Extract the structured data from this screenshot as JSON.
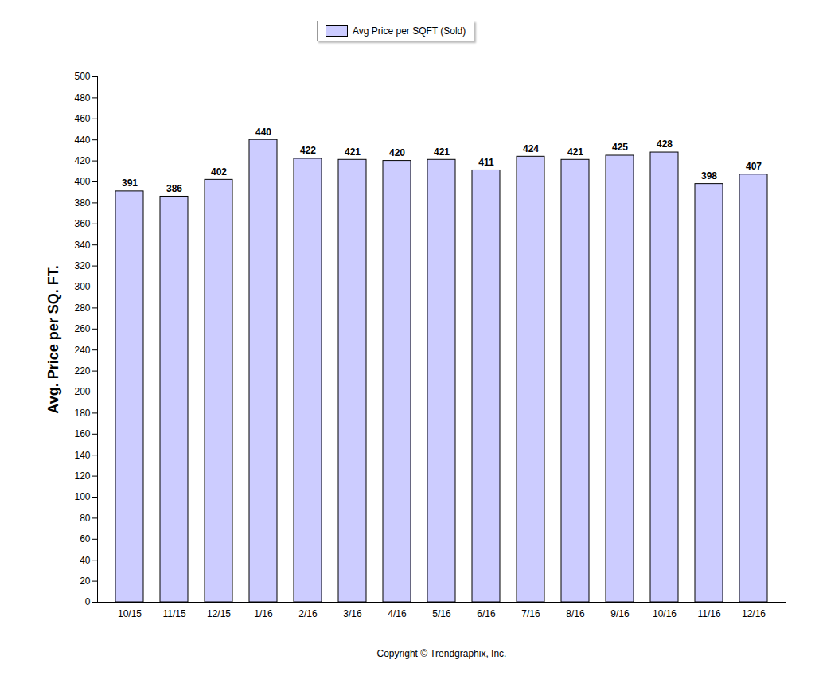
{
  "chart_data": {
    "type": "bar",
    "y_label": "Avg. Price per SQ. FT.",
    "caption": "Copyright © Trendgraphix, Inc.",
    "categories": [
      "10/15",
      "11/15",
      "12/15",
      "1/16",
      "2/16",
      "3/16",
      "4/16",
      "5/16",
      "6/16",
      "7/16",
      "8/16",
      "9/16",
      "10/16",
      "11/16",
      "12/16"
    ],
    "series": [
      {
        "name": "Avg Price per SQFT (Sold)",
        "color": "#ccccff",
        "values": [
          391,
          386,
          402,
          440,
          422,
          421,
          420,
          421,
          411,
          424,
          421,
          425,
          428,
          398,
          407
        ]
      }
    ],
    "ylim": [
      0,
      500
    ],
    "yticks": [
      0,
      20,
      40,
      60,
      80,
      100,
      120,
      140,
      160,
      180,
      200,
      220,
      240,
      260,
      280,
      300,
      320,
      340,
      360,
      380,
      400,
      420,
      440,
      460,
      480,
      500
    ],
    "grid": false,
    "legend": "top",
    "data_labels": true
  }
}
